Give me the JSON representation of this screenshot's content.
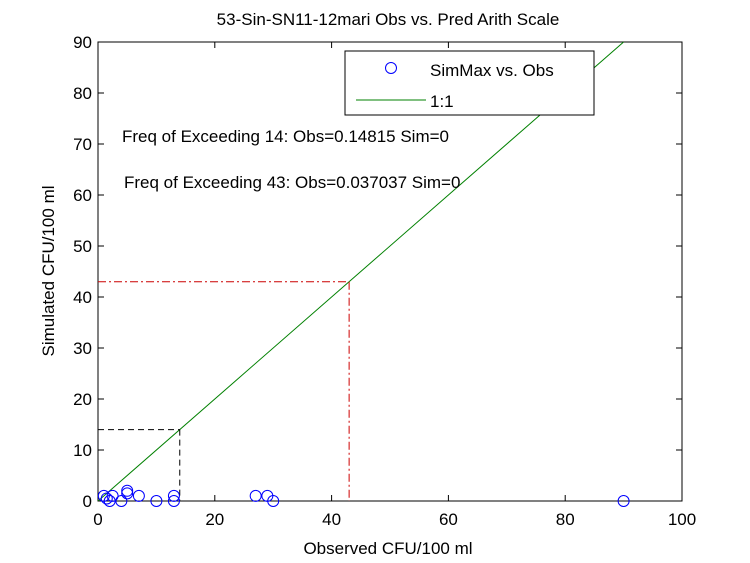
{
  "chart_data": {
    "type": "scatter",
    "title": "53-Sin-SN11-12mari Obs vs. Pred Arith Scale",
    "xlabel": "Observed CFU/100 ml",
    "ylabel": "Simulated CFU/100 ml",
    "xlim": [
      0,
      100
    ],
    "ylim": [
      0,
      90
    ],
    "xticks": [
      "0",
      "20",
      "40",
      "60",
      "80",
      "100"
    ],
    "yticks": [
      "0",
      "10",
      "20",
      "30",
      "40",
      "50",
      "60",
      "70",
      "80",
      "90"
    ],
    "grid": false,
    "legend_position": "top-right",
    "series": [
      {
        "name": "SimMax vs. Obs",
        "kind": "scatter",
        "marker": "circle",
        "color": "#0000ff",
        "points": [
          [
            1,
            1
          ],
          [
            2,
            0
          ],
          [
            1.5,
            0.5
          ],
          [
            2.5,
            1
          ],
          [
            4,
            0
          ],
          [
            5,
            1.5
          ],
          [
            5,
            2
          ],
          [
            7,
            1
          ],
          [
            10,
            0
          ],
          [
            13,
            1
          ],
          [
            13,
            0
          ],
          [
            27,
            1
          ],
          [
            29,
            1
          ],
          [
            30,
            0
          ],
          [
            90,
            0
          ]
        ]
      },
      {
        "name": "1:1",
        "kind": "line",
        "color": "#008000",
        "points": [
          [
            0,
            0
          ],
          [
            90,
            90
          ]
        ]
      }
    ],
    "thresholds": [
      {
        "value": 14,
        "color": "#000000",
        "style": "dashed"
      },
      {
        "value": 43,
        "color": "#cc0000",
        "style": "dashdot"
      }
    ],
    "annotations": [
      "Freq of Exceeding 14: Obs=0.14815 Sim=0",
      "Freq of Exceeding 43: Obs=0.037037 Sim=0"
    ]
  }
}
